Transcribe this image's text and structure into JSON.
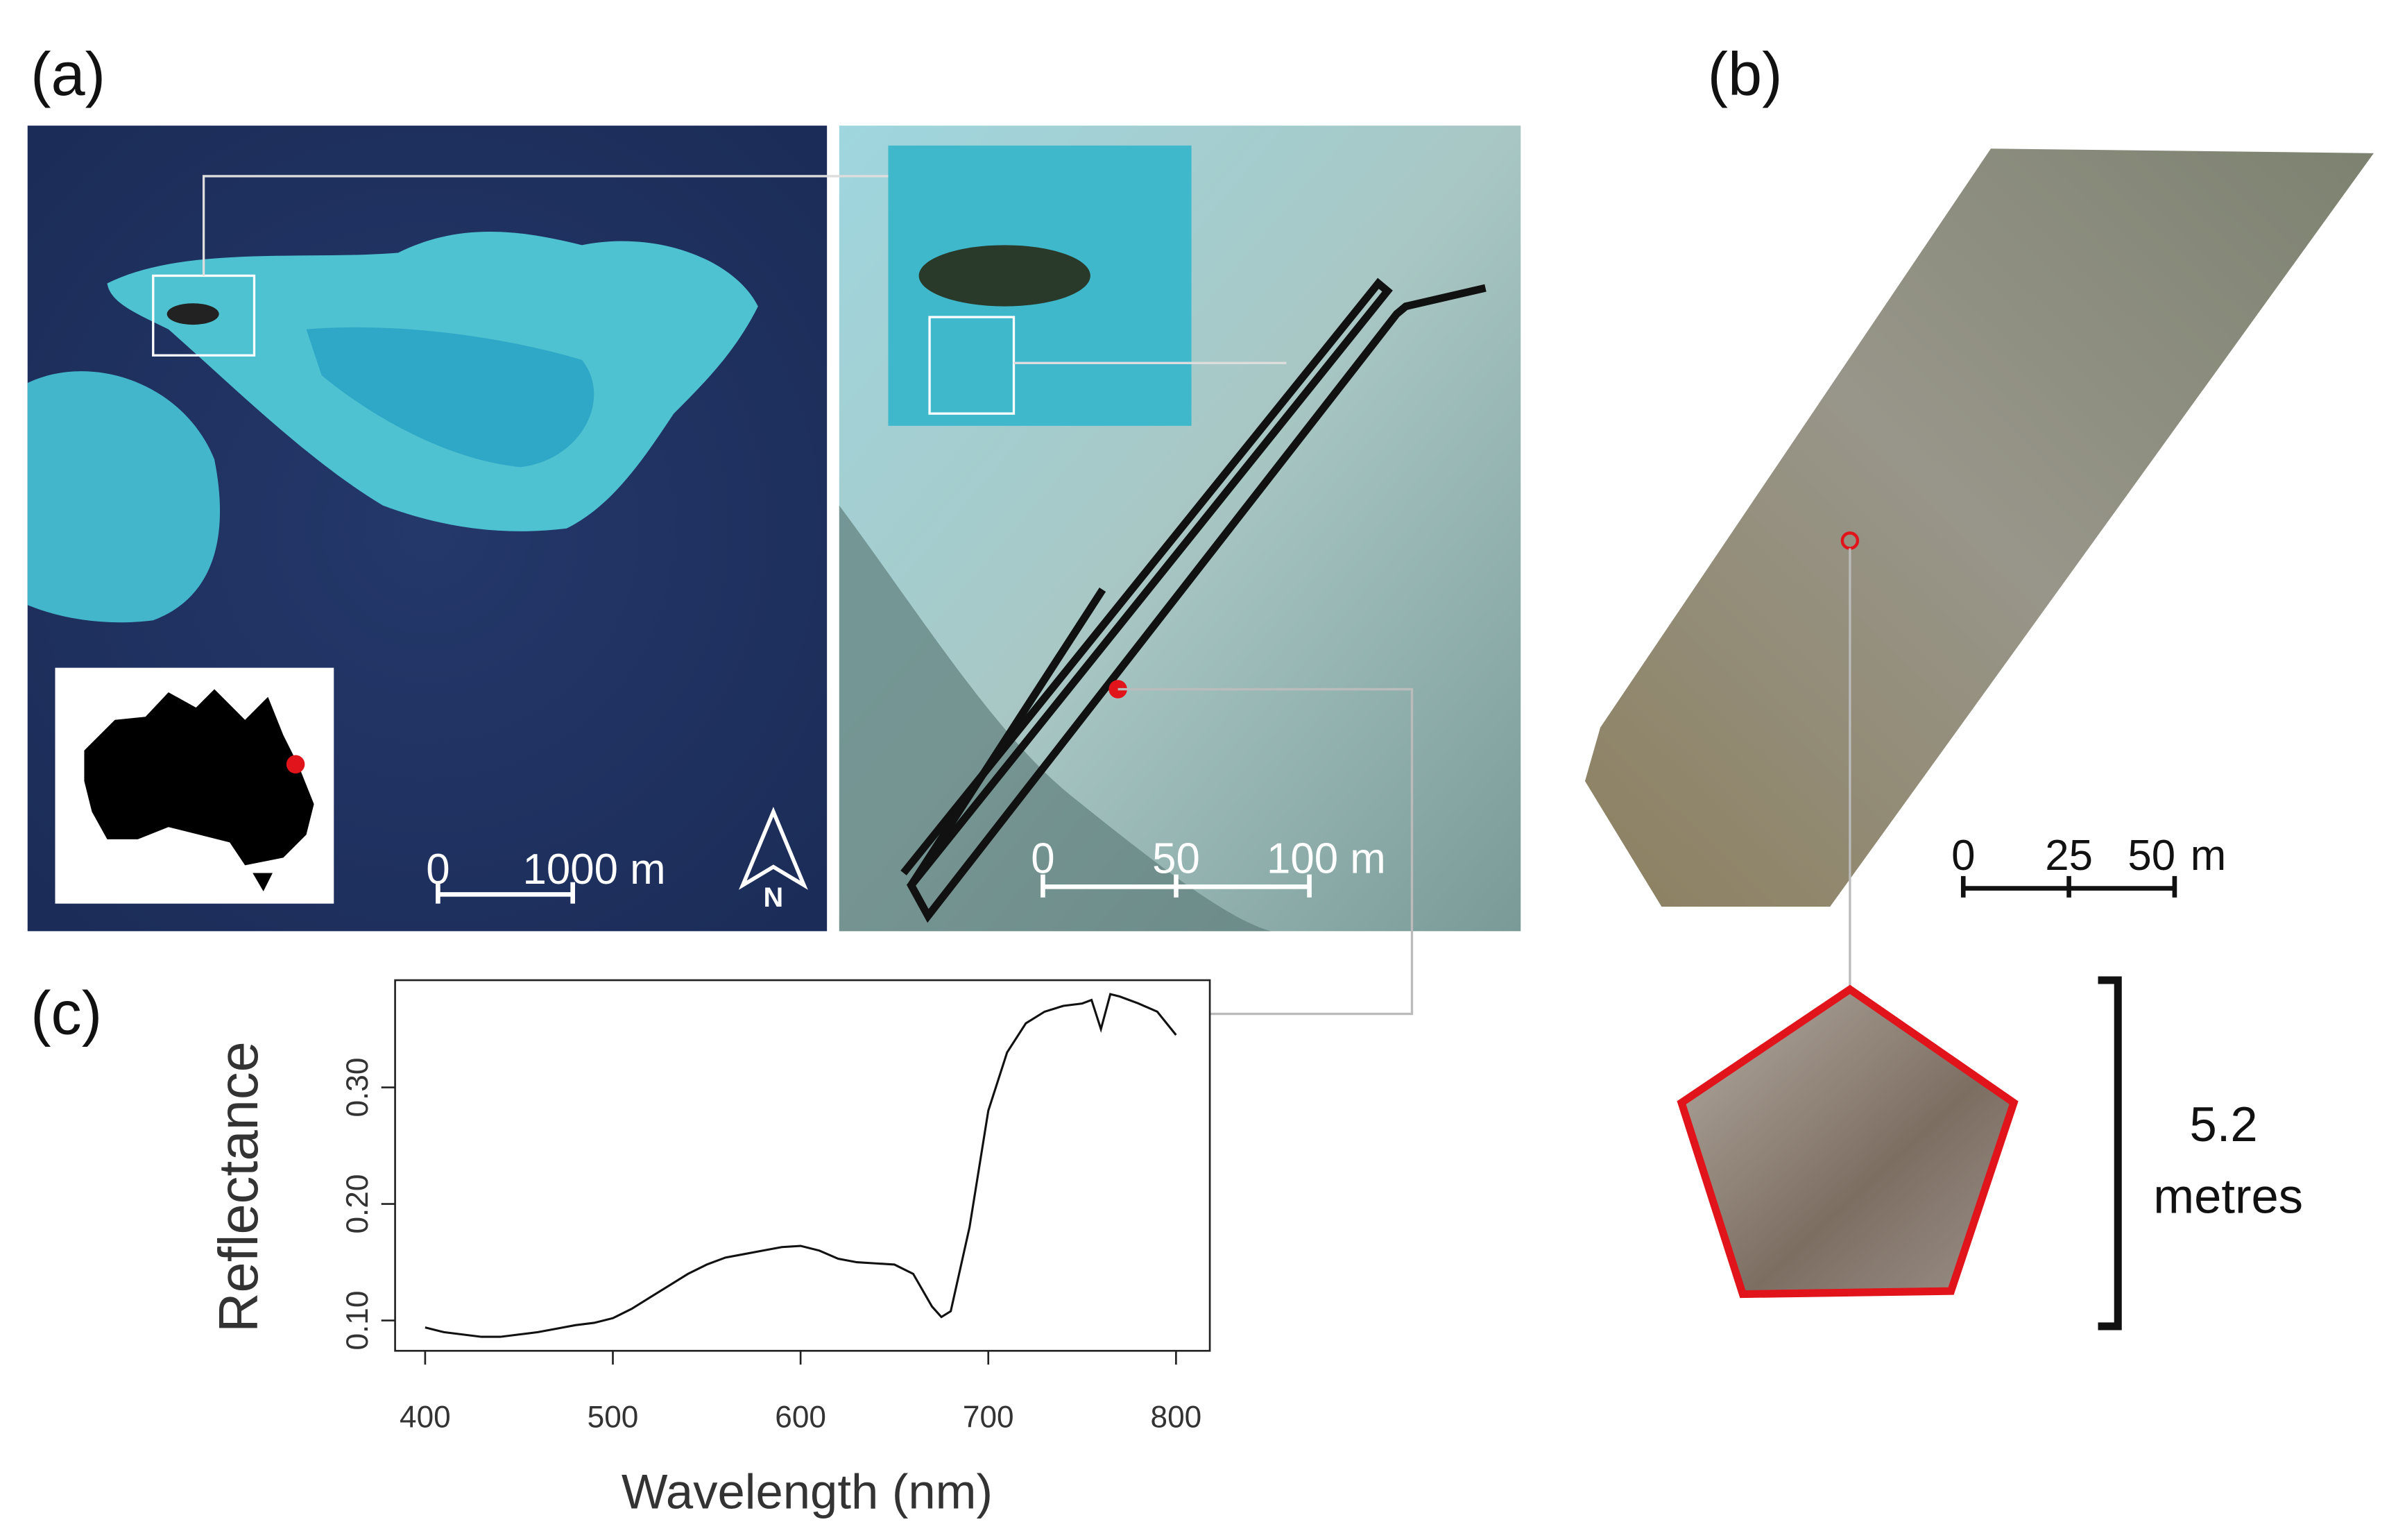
{
  "panel_labels": [
    "(a)",
    "(b)",
    "(c)"
  ],
  "map_a": {
    "scale_bar": [
      "0",
      "1000 m"
    ],
    "north": "N"
  },
  "map_a_detail": {
    "scale_bar": [
      "0",
      "50",
      "100 m"
    ]
  },
  "map_b": {
    "scale_bar": [
      "0",
      "25",
      "50",
      "m"
    ],
    "quadrat_size": [
      "5.2",
      "metres"
    ]
  },
  "chart_data": {
    "type": "line",
    "x_label": "Wavelength (nm)",
    "y_label": "Reflectance",
    "x": [
      400,
      410,
      420,
      430,
      440,
      450,
      460,
      470,
      480,
      490,
      500,
      510,
      520,
      530,
      540,
      550,
      560,
      570,
      580,
      590,
      600,
      610,
      620,
      630,
      640,
      650,
      660,
      670,
      675,
      680,
      690,
      700,
      710,
      720,
      730,
      740,
      750,
      755,
      760,
      765,
      770,
      780,
      790,
      800
    ],
    "values": [
      0.094,
      0.09,
      0.088,
      0.086,
      0.086,
      0.088,
      0.09,
      0.093,
      0.096,
      0.098,
      0.102,
      0.11,
      0.12,
      0.13,
      0.14,
      0.148,
      0.154,
      0.157,
      0.16,
      0.163,
      0.164,
      0.16,
      0.153,
      0.15,
      0.149,
      0.148,
      0.14,
      0.112,
      0.103,
      0.108,
      0.18,
      0.28,
      0.33,
      0.355,
      0.365,
      0.37,
      0.372,
      0.375,
      0.35,
      0.38,
      0.378,
      0.372,
      0.365,
      0.345
    ],
    "color": "#111111",
    "xlim": [
      384,
      818
    ],
    "ylim": [
      0.074,
      0.392
    ],
    "xticks": [
      400,
      500,
      600,
      700,
      800
    ],
    "yticks": [
      {
        "value": 0.1,
        "label": "0.10"
      },
      {
        "value": 0.2,
        "label": "0.20"
      },
      {
        "value": 0.3,
        "label": "0.30"
      }
    ]
  }
}
